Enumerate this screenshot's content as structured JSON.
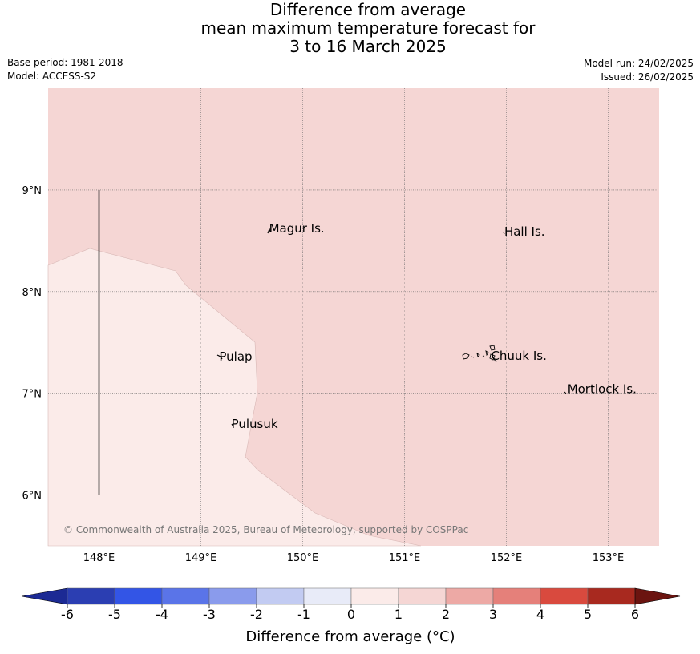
{
  "title": {
    "line1": "Difference from average",
    "line2": "mean maximum temperature forecast for",
    "line3": "3 to 16 March 2025"
  },
  "info_left": {
    "base_period": "Base period: 1981-2018",
    "model": "Model: ACCESS-S2"
  },
  "info_right": {
    "model_run": "Model run: 24/02/2025",
    "issued": "Issued: 26/02/2025"
  },
  "map": {
    "lon_range": [
      147.5,
      153.5
    ],
    "lat_range": [
      5.5,
      10.0
    ],
    "lon_ticks": [
      {
        "value": 148,
        "label": "148°E"
      },
      {
        "value": 149,
        "label": "149°E"
      },
      {
        "value": 150,
        "label": "150°E"
      },
      {
        "value": 151,
        "label": "151°E"
      },
      {
        "value": 152,
        "label": "152°E"
      },
      {
        "value": 153,
        "label": "153°E"
      }
    ],
    "lat_ticks": [
      {
        "value": 9,
        "label": "9°N"
      },
      {
        "value": 8,
        "label": "8°N"
      },
      {
        "value": 7,
        "label": "7°N"
      },
      {
        "value": 6,
        "label": "6°N"
      }
    ],
    "grid": true,
    "fill_colors": {
      "anomaly_1_to_2": "#f5d6d4",
      "anomaly_0_to_1": "#fbebe9"
    },
    "boundary_line": {
      "lon": 148.0,
      "lat_from": 6.0,
      "lat_to": 9.0
    },
    "places": [
      {
        "name": "Magur Is.",
        "lon": 149.67,
        "lat": 8.58
      },
      {
        "name": "Hall Is.",
        "lon": 151.98,
        "lat": 8.55
      },
      {
        "name": "Pulap",
        "lon": 149.18,
        "lat": 7.32
      },
      {
        "name": "Chuuk Is.",
        "lon": 151.85,
        "lat": 7.33
      },
      {
        "name": "Mortlock Is.",
        "lon": 152.6,
        "lat": 7.0
      },
      {
        "name": "Pulusuk",
        "lon": 149.3,
        "lat": 6.66
      }
    ],
    "copyright": "© Commonwealth of Australia 2025, Bureau of Meteorology, supported by COSPPac"
  },
  "colorbar": {
    "ticks": [
      "-6",
      "-5",
      "-4",
      "-3",
      "-2",
      "-1",
      "0",
      "1",
      "2",
      "3",
      "4",
      "5",
      "6"
    ],
    "colors": [
      "#1c2a94",
      "#2b3eb2",
      "#3355e6",
      "#5a74e8",
      "#8a9bec",
      "#c2cbf2",
      "#e8ebf8",
      "#fbebe9",
      "#f5d6d4",
      "#eda9a5",
      "#e5807a",
      "#d94a3e",
      "#a8291f",
      "#6b1410"
    ],
    "label": "Difference from average (°C)"
  }
}
